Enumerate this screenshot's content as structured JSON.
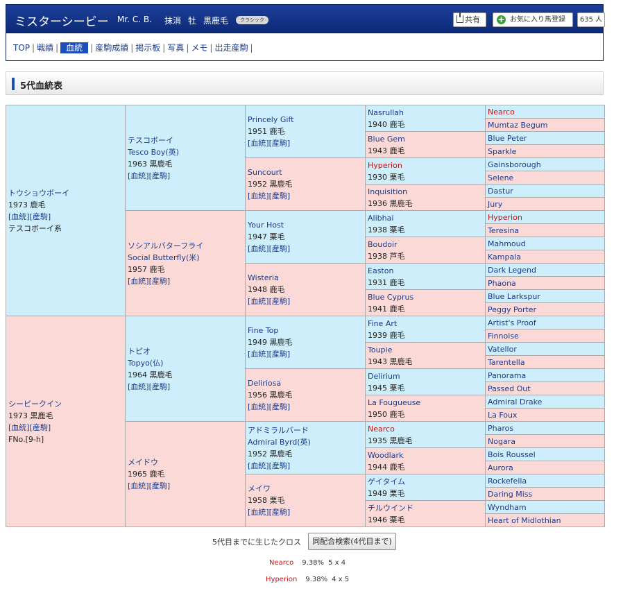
{
  "header": {
    "name": "ミスターシービー",
    "name_en": "Mr. C. B.",
    "status": "抹消",
    "sex": "牡",
    "color": "黒鹿毛",
    "badge": "クラシック",
    "share_label": "共有",
    "fav_label": "お気に入り馬登録",
    "fav_count": "635 人"
  },
  "nav": {
    "items": [
      "TOP",
      "戦績",
      "血統",
      "産駒成績",
      "掲示板",
      "写真",
      "メモ",
      "出走産駒"
    ],
    "current": "血統",
    "separator": "|"
  },
  "section": {
    "title": "5代血統表"
  },
  "links": {
    "blood": "[血統]",
    "prog": "[産駒]"
  },
  "pedigree": {
    "g1": [
      {
        "name": "トウショウボーイ",
        "year": "1973",
        "color": "鹿毛",
        "line": "テスコボーイ系"
      },
      {
        "name": "シービークイン",
        "year": "1973",
        "color": "黒鹿毛",
        "family": "FNo.[9-h]"
      }
    ],
    "g2": [
      {
        "name": "テスコボーイ",
        "en": "Tesco Boy(英)",
        "year": "1963",
        "color": "黒鹿毛"
      },
      {
        "name": "ソシアルバターフライ",
        "en": "Social Butterfly(米)",
        "year": "1957",
        "color": "鹿毛"
      },
      {
        "name": "トピオ",
        "en": "Topyo(仏)",
        "year": "1964",
        "color": "黒鹿毛"
      },
      {
        "name": "メイドウ",
        "year": "1965",
        "color": "鹿毛"
      }
    ],
    "g3": [
      {
        "name": "Princely Gift",
        "year": "1951",
        "color": "鹿毛"
      },
      {
        "name": "Suncourt",
        "year": "1952",
        "color": "黒鹿毛"
      },
      {
        "name": "Your Host",
        "year": "1947",
        "color": "栗毛"
      },
      {
        "name": "Wisteria",
        "year": "1948",
        "color": "鹿毛"
      },
      {
        "name": "Fine Top",
        "year": "1949",
        "color": "黒鹿毛"
      },
      {
        "name": "Deliriosa",
        "year": "1956",
        "color": "黒鹿毛"
      },
      {
        "name": "アドミラルバード",
        "en": "Admiral Byrd(英)",
        "year": "1952",
        "color": "黒鹿毛"
      },
      {
        "name": "メイワ",
        "year": "1958",
        "color": "栗毛"
      }
    ],
    "g4": [
      {
        "name": "Nasrullah",
        "year": "1940",
        "color": "鹿毛"
      },
      {
        "name": "Blue Gem",
        "year": "1943",
        "color": "鹿毛"
      },
      {
        "name": "Hyperion",
        "year": "1930",
        "color": "栗毛",
        "red": true
      },
      {
        "name": "Inquisition",
        "year": "1936",
        "color": "黒鹿毛"
      },
      {
        "name": "Alibhai",
        "year": "1938",
        "color": "栗毛"
      },
      {
        "name": "Boudoir",
        "year": "1938",
        "color": "芦毛"
      },
      {
        "name": "Easton",
        "year": "1931",
        "color": "鹿毛"
      },
      {
        "name": "Blue Cyprus",
        "year": "1941",
        "color": "鹿毛"
      },
      {
        "name": "Fine Art",
        "year": "1939",
        "color": "鹿毛"
      },
      {
        "name": "Toupie",
        "year": "1943",
        "color": "黒鹿毛"
      },
      {
        "name": "Delirium",
        "year": "1945",
        "color": "栗毛"
      },
      {
        "name": "La Fougueuse",
        "year": "1950",
        "color": "鹿毛"
      },
      {
        "name": "Nearco",
        "year": "1935",
        "color": "黒鹿毛",
        "red": true
      },
      {
        "name": "Woodlark",
        "year": "1944",
        "color": "鹿毛"
      },
      {
        "name": "ゲイタイム",
        "year": "1949",
        "color": "栗毛"
      },
      {
        "name": "チルウインド",
        "year": "1946",
        "color": "栗毛"
      }
    ],
    "g5": [
      {
        "name": "Nearco",
        "red": true
      },
      {
        "name": "Mumtaz Begum"
      },
      {
        "name": "Blue Peter"
      },
      {
        "name": "Sparkle"
      },
      {
        "name": "Gainsborough"
      },
      {
        "name": "Selene"
      },
      {
        "name": "Dastur"
      },
      {
        "name": "Jury"
      },
      {
        "name": "Hyperion",
        "red": true
      },
      {
        "name": "Teresina"
      },
      {
        "name": "Mahmoud"
      },
      {
        "name": "Kampala"
      },
      {
        "name": "Dark Legend"
      },
      {
        "name": "Phaona"
      },
      {
        "name": "Blue Larkspur"
      },
      {
        "name": "Peggy Porter"
      },
      {
        "name": "Artist's Proof"
      },
      {
        "name": "Finnoise"
      },
      {
        "name": "Vatellor"
      },
      {
        "name": "Tarentella"
      },
      {
        "name": "Panorama"
      },
      {
        "name": "Passed Out"
      },
      {
        "name": "Admiral Drake"
      },
      {
        "name": "La Foux"
      },
      {
        "name": "Pharos"
      },
      {
        "name": "Nogara"
      },
      {
        "name": "Bois Roussel"
      },
      {
        "name": "Aurora"
      },
      {
        "name": "Rockefella"
      },
      {
        "name": "Daring Miss"
      },
      {
        "name": "Wyndham"
      },
      {
        "name": "Heart of Midlothian"
      }
    ]
  },
  "cross": {
    "label": "5代目までに生じたクロス",
    "search_button": "同配合検索(4代目まで)",
    "items": [
      {
        "name": "Nearco",
        "pct": "9.38%",
        "gen": "5 x 4"
      },
      {
        "name": "Hyperion",
        "pct": "9.38%",
        "gen": "4 x 5"
      }
    ]
  },
  "colors": {
    "male_bg": "#cdeefa",
    "female_bg": "#fbd9d6",
    "accent": "#1d4fb8",
    "cross_red": "#cc1111"
  }
}
